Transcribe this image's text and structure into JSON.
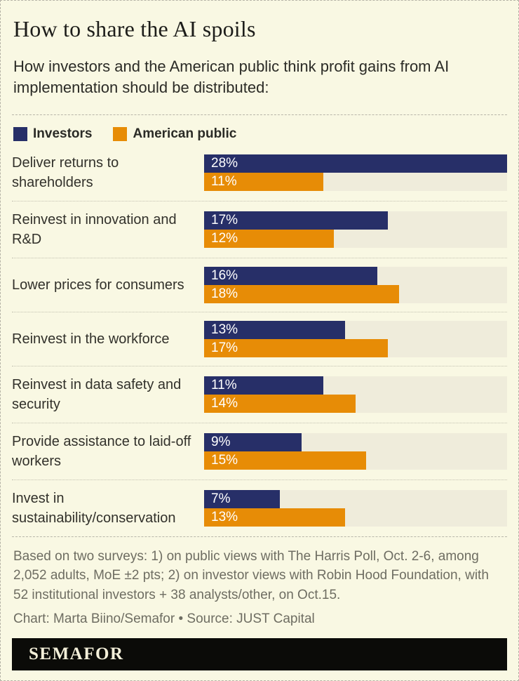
{
  "header": {
    "title": "How to share the AI spoils",
    "subtitle": "How investors and the American public think profit gains from AI implementation should be distributed:"
  },
  "legend": {
    "items": [
      {
        "label": "Investors",
        "color": "#272f68"
      },
      {
        "label": "American public",
        "color": "#e78c06"
      }
    ]
  },
  "chart_data": {
    "type": "bar",
    "orientation": "horizontal",
    "title": "How to share the AI spoils",
    "categories": [
      "Deliver returns to shareholders",
      "Reinvest in innovation and R&D",
      "Lower prices for consumers",
      "Reinvest in the workforce",
      "Reinvest in data safety and security",
      "Provide assistance to laid-off workers",
      "Invest in sustainability/conservation"
    ],
    "series": [
      {
        "name": "Investors",
        "color": "#272f68",
        "values": [
          28,
          17,
          16,
          13,
          11,
          9,
          7
        ]
      },
      {
        "name": "American public",
        "color": "#e78c06",
        "values": [
          11,
          12,
          18,
          17,
          14,
          15,
          13
        ]
      }
    ],
    "value_suffix": "%",
    "xlim": [
      0,
      28
    ],
    "track_color": "#efecdb",
    "grid": false,
    "legend_position": "top"
  },
  "footer": {
    "note": "Based on two surveys: 1) on public views with The Harris Poll, Oct. 2-6, among 2,052 adults, MoE ±2 pts; 2) on investor views with Robin Hood Foundation, with 52 institutional investors + 38 analysts/other, on Oct.15.",
    "credit": "Chart: Marta Biino/Semafor • Source: JUST Capital",
    "brand": "SEMAFOR"
  }
}
